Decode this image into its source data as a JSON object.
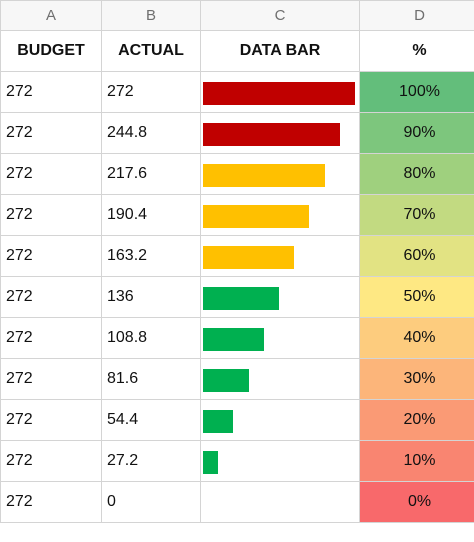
{
  "columns": {
    "letters": [
      "A",
      "B",
      "C",
      "D"
    ],
    "headers": [
      "BUDGET",
      "ACTUAL",
      "DATA BAR",
      "%"
    ]
  },
  "rows": [
    {
      "budget": "272",
      "actual": "272",
      "percent": "100%",
      "fraction": 1.0,
      "bar_color": "#c00000",
      "pct_color": "#63be7b"
    },
    {
      "budget": "272",
      "actual": "244.8",
      "percent": "90%",
      "fraction": 0.9,
      "bar_color": "#c00000",
      "pct_color": "#7dc67d"
    },
    {
      "budget": "272",
      "actual": "217.6",
      "percent": "80%",
      "fraction": 0.8,
      "bar_color": "#ffc000",
      "pct_color": "#9fd07e"
    },
    {
      "budget": "272",
      "actual": "190.4",
      "percent": "70%",
      "fraction": 0.7,
      "bar_color": "#ffc000",
      "pct_color": "#c2da81"
    },
    {
      "budget": "272",
      "actual": "163.2",
      "percent": "60%",
      "fraction": 0.6,
      "bar_color": "#ffc000",
      "pct_color": "#e2e383"
    },
    {
      "budget": "272",
      "actual": "136",
      "percent": "50%",
      "fraction": 0.5,
      "bar_color": "#00b050",
      "pct_color": "#fee883"
    },
    {
      "budget": "272",
      "actual": "108.8",
      "percent": "40%",
      "fraction": 0.4,
      "bar_color": "#00b050",
      "pct_color": "#fdcc7e"
    },
    {
      "budget": "272",
      "actual": "81.6",
      "percent": "30%",
      "fraction": 0.3,
      "bar_color": "#00b050",
      "pct_color": "#fcb57a"
    },
    {
      "budget": "272",
      "actual": "54.4",
      "percent": "20%",
      "fraction": 0.2,
      "bar_color": "#00b050",
      "pct_color": "#fa9a75"
    },
    {
      "budget": "272",
      "actual": "27.2",
      "percent": "10%",
      "fraction": 0.1,
      "bar_color": "#00b050",
      "pct_color": "#f98571"
    },
    {
      "budget": "272",
      "actual": "0",
      "percent": "0%",
      "fraction": 0.0,
      "bar_color": "#00b050",
      "pct_color": "#f8696b"
    }
  ]
}
